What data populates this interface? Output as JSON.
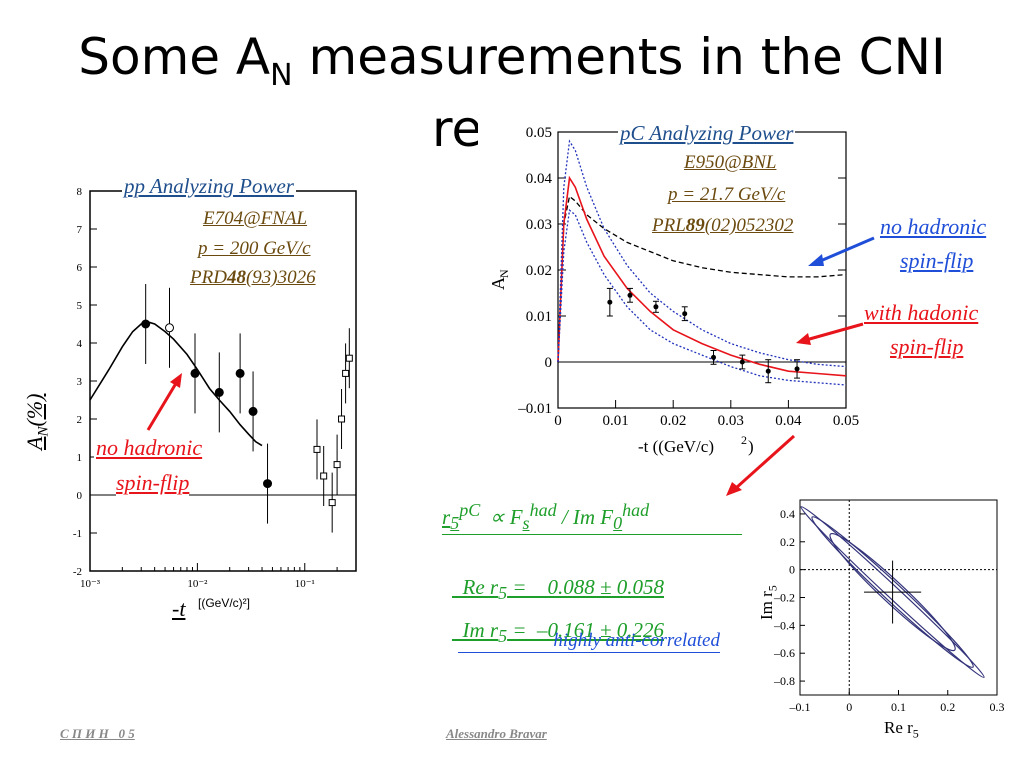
{
  "title": {
    "prefix": "Some A",
    "sub": "N",
    "suffix": " measurements in the CNI",
    "line2": "re"
  },
  "left_panel": {
    "heading": "pp Analyzing Power",
    "experiment": "E704@FNAL",
    "momentum": "p = 200 GeV/c",
    "ref_a": "PRD",
    "ref_b": "48",
    "ref_c": "(93)3026",
    "annotation_1": "no hadronic",
    "annotation_2": "spin-flip",
    "y_axis_label": "A",
    "y_axis_sub": "N",
    "y_axis_unit": "(%)",
    "x_axis_label": "-t",
    "x_axis_unit": "[(GeV/c)²]"
  },
  "right_panel": {
    "heading": "pC Analyzing Power",
    "experiment": "E950@BNL",
    "momentum": "p = 21.7 GeV/c",
    "ref_a": "PRL",
    "ref_b": "89",
    "ref_c": "(02)052302",
    "note_blue_1": "no hadronic",
    "note_blue_2": "spin-flip",
    "note_red_1": "with hadonic",
    "note_red_2": "spin-flip",
    "y_axis_label": "A",
    "y_axis_sub": "N",
    "x_axis_label": "-t ((GeV/c)",
    "x_axis_sup": "2",
    "x_axis_close": ")"
  },
  "equations": {
    "line1_a": "r",
    "line1_b": "5",
    "line1_c": "pC",
    "line1_d": "∝ F",
    "line1_e": "s",
    "line1_f": "had",
    "line1_g": "/ Im F",
    "line1_h": "0",
    "line1_i": "had",
    "line2_a": "Re r",
    "line2_b": "5",
    "line2_c": " =    0.088 ± 0.058",
    "line3_a": "Im r",
    "line3_b": "5",
    "line3_c": " =  –0.161 ± 0.226",
    "note": "highly anti-correlated"
  },
  "corr_panel": {
    "x_label": "Re r",
    "x_sub": "5",
    "y_label": "Im r",
    "y_sub": "5"
  },
  "footer": {
    "left": "С П И Н   0 5",
    "center": "Alessandro Bravar"
  },
  "chart_data": [
    {
      "type": "scatter",
      "x_scale": "log",
      "xlim": [
        0.001,
        0.3
      ],
      "ylim": [
        -2,
        8
      ],
      "x_ticks": [
        "10⁻³",
        "10⁻²",
        "10⁻¹"
      ],
      "y_ticks": [
        "-2",
        "-1",
        "0",
        "1",
        "2",
        "3",
        "4",
        "5",
        "6",
        "7",
        "8"
      ],
      "series": [
        {
          "x": [
            0.0033,
            0.0055,
            0.0095,
            0.016,
            0.025,
            0.033,
            0.045
          ],
          "y": [
            4.5,
            4.4,
            3.2,
            2.7,
            3.2,
            2.2,
            0.3
          ]
        }
      ],
      "curve": {
        "x": [
          0.001,
          0.0015,
          0.002,
          0.0025,
          0.003,
          0.0035,
          0.004,
          0.005,
          0.006,
          0.008,
          0.01,
          0.013,
          0.016,
          0.02,
          0.025,
          0.03,
          0.035,
          0.04
        ],
        "y": [
          2.5,
          3.3,
          3.9,
          4.3,
          4.5,
          4.55,
          4.5,
          4.3,
          4.1,
          3.7,
          3.3,
          2.8,
          2.5,
          2.2,
          1.85,
          1.6,
          1.4,
          1.3
        ]
      }
    },
    {
      "type": "line",
      "xlim": [
        0,
        0.05
      ],
      "ylim": [
        -0.01,
        0.05
      ],
      "x_ticks": [
        "0",
        "0.01",
        "0.02",
        "0.03",
        "0.04",
        "0.05"
      ],
      "y_ticks": [
        "–0.01",
        "0",
        "0.01",
        "0.02",
        "0.03",
        "0.04",
        "0.05"
      ],
      "points": {
        "x": [
          0.009,
          0.0125,
          0.017,
          0.022,
          0.027,
          0.032,
          0.0365,
          0.0415
        ],
        "y": [
          0.013,
          0.0145,
          0.012,
          0.0105,
          0.001,
          0.0,
          -0.002,
          -0.0015
        ],
        "err": [
          0.003,
          0.0015,
          0.0012,
          0.0015,
          0.0015,
          0.0015,
          0.0025,
          0.002
        ]
      },
      "series": [
        {
          "name": "",
          "style": "dashed",
          "x": [
            0,
            0.001,
            0.002,
            0.003,
            0.005,
            0.008,
            0.012,
            0.016,
            0.02,
            0.025,
            0.03,
            0.035,
            0.04,
            0.045,
            0.05
          ],
          "y": [
            0,
            0.03,
            0.036,
            0.035,
            0.032,
            0.029,
            0.026,
            0.024,
            0.022,
            0.0205,
            0.0195,
            0.019,
            0.0185,
            0.0185,
            0.019
          ]
        },
        {
          "name": "",
          "style": "red",
          "x": [
            0,
            0.001,
            0.002,
            0.003,
            0.005,
            0.008,
            0.012,
            0.016,
            0.02,
            0.025,
            0.03,
            0.035,
            0.04,
            0.045,
            0.05
          ],
          "y": [
            0,
            0.03,
            0.04,
            0.038,
            0.031,
            0.023,
            0.016,
            0.011,
            0.007,
            0.004,
            0.0015,
            -0.0005,
            -0.002,
            -0.0025,
            -0.003
          ]
        },
        {
          "name": "",
          "style": "dotted_upper",
          "x": [
            0,
            0.001,
            0.002,
            0.003,
            0.005,
            0.008,
            0.012,
            0.016,
            0.02,
            0.025,
            0.03,
            0.035,
            0.04,
            0.045,
            0.05
          ],
          "y": [
            0,
            0.038,
            0.048,
            0.046,
            0.038,
            0.029,
            0.021,
            0.015,
            0.011,
            0.007,
            0.004,
            0.002,
            0.0005,
            -0.0005,
            -0.001
          ]
        },
        {
          "name": "",
          "style": "dotted_lower",
          "x": [
            0,
            0.001,
            0.002,
            0.003,
            0.005,
            0.008,
            0.012,
            0.016,
            0.02,
            0.025,
            0.03,
            0.035,
            0.04,
            0.045,
            0.05
          ],
          "y": [
            0,
            0.024,
            0.033,
            0.032,
            0.026,
            0.019,
            0.012,
            0.007,
            0.004,
            0.0015,
            -0.001,
            -0.003,
            -0.004,
            -0.0045,
            -0.005
          ]
        }
      ]
    },
    {
      "type": "scatter",
      "xlim": [
        -0.1,
        0.3
      ],
      "ylim": [
        -0.9,
        0.5
      ],
      "x_ticks": [
        "–0.1",
        "0",
        "0.1",
        "0.2",
        "0.3"
      ],
      "y_ticks": [
        "0.4",
        "0.2",
        "0",
        "–0.2",
        "–0.4",
        "–0.6",
        "–0.8"
      ],
      "central": {
        "x": 0.088,
        "y": -0.161,
        "xerr": 0.058,
        "yerr": 0.226
      }
    }
  ]
}
